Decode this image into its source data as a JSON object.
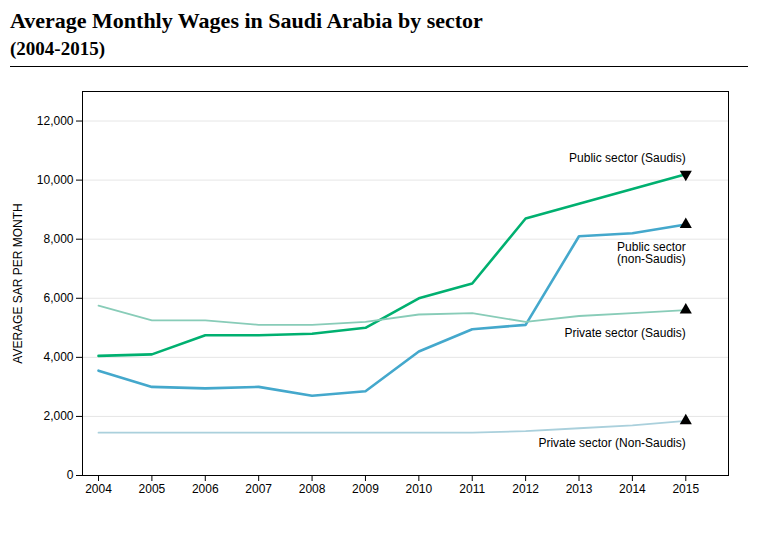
{
  "chart_data": {
    "type": "line",
    "title": "Average Monthly Wages in Saudi Arabia by sector",
    "subtitle": "(2004-2015)",
    "ylabel": "AVERAGE SAR PER MONTH",
    "x": [
      2004,
      2005,
      2006,
      2007,
      2008,
      2009,
      2010,
      2011,
      2012,
      2013,
      2014,
      2015
    ],
    "series": [
      {
        "name": "Public sector (Saudis)",
        "color": "#00b070",
        "marker": "triangle_down",
        "values": [
          4050,
          4100,
          4750,
          4750,
          4800,
          5000,
          6000,
          6500,
          8700,
          9200,
          9700,
          10200
        ]
      },
      {
        "name": "Public sector\n(non-Saudis)",
        "color": "#44a8cc",
        "marker": "triangle_up",
        "values": [
          3550,
          3000,
          2950,
          3000,
          2700,
          2850,
          4200,
          4950,
          5100,
          8100,
          8200,
          8500
        ]
      },
      {
        "name": "Private sector (Saudis)",
        "color": "#88ccb8",
        "marker": "triangle_up",
        "values": [
          5750,
          5250,
          5250,
          5100,
          5100,
          5200,
          5450,
          5500,
          5200,
          5400,
          5500,
          5600
        ]
      },
      {
        "name": "Private sector (Non-Saudis)",
        "color": "#aad0dc",
        "marker": "triangle_up",
        "values": [
          1450,
          1450,
          1450,
          1450,
          1450,
          1450,
          1450,
          1450,
          1500,
          1600,
          1700,
          1850
        ]
      }
    ],
    "xlim": [
      2003.7,
      2015.8
    ],
    "xticks": [
      2004,
      2005,
      2006,
      2007,
      2008,
      2009,
      2010,
      2011,
      2012,
      2013,
      2014,
      2015
    ],
    "ylim": [
      0,
      13000
    ],
    "yticks": [
      0,
      {
        "value": 2000,
        "label": "2,000"
      },
      {
        "value": 4000,
        "label": "4,000"
      },
      {
        "value": 6000,
        "label": "6,000"
      },
      {
        "value": 8000,
        "label": "8,000"
      },
      {
        "value": 10000,
        "label": "10,000"
      },
      {
        "value": 12000,
        "label": "12,000"
      }
    ],
    "grid": true
  }
}
